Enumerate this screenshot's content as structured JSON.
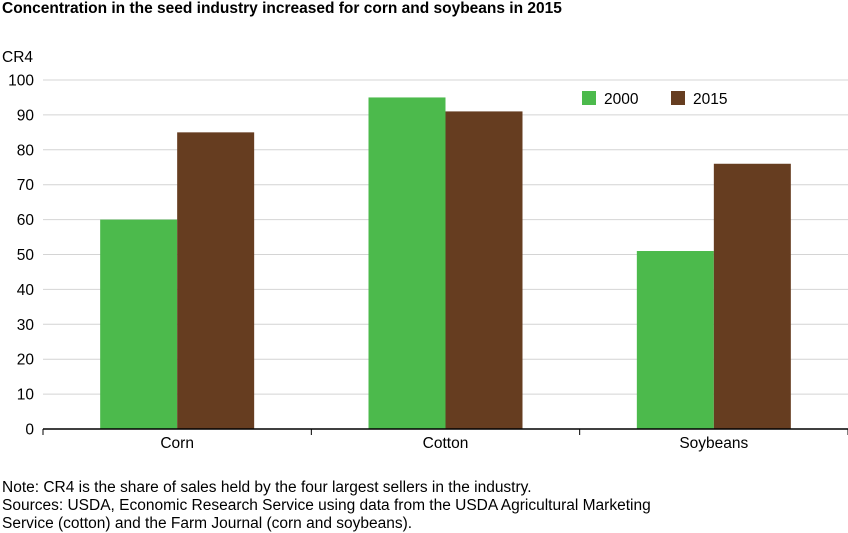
{
  "title": "Concentration in the seed industry increased for corn and soybeans in 2015",
  "chart_data": {
    "type": "bar",
    "ylabel": "CR4",
    "categories": [
      "Corn",
      "Cotton",
      "Soybeans"
    ],
    "series": [
      {
        "name": "2000",
        "values": [
          60,
          95,
          51
        ],
        "color": "#4cba4c"
      },
      {
        "name": "2015",
        "values": [
          85,
          91,
          76
        ],
        "color": "#663d20"
      }
    ],
    "ylim": [
      0,
      100
    ],
    "yticks": [
      0,
      10,
      20,
      30,
      40,
      50,
      60,
      70,
      80,
      90,
      100
    ],
    "grid": true,
    "legend": "top-right"
  },
  "notes": [
    "Note: CR4 is the share of sales held by the four largest sellers in the industry.",
    "Sources: USDA, Economic Research Service using data from the USDA Agricultural Marketing",
    "Service (cotton) and the Farm Journal (corn and soybeans)."
  ]
}
